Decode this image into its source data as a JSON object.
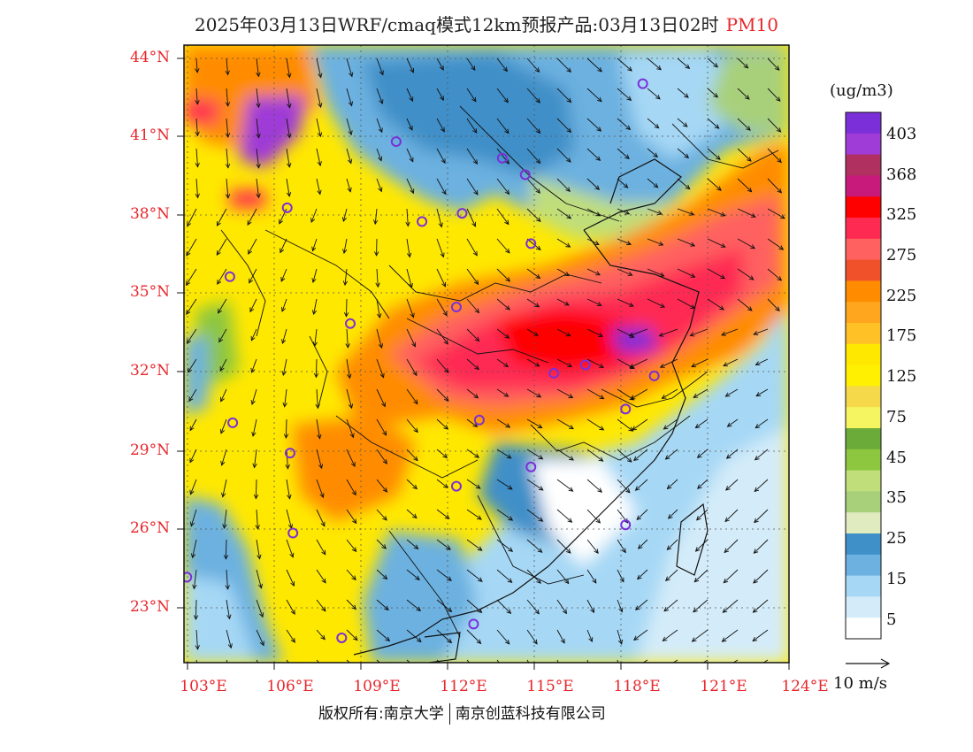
{
  "header": {
    "title": "2025年03月13日WRF/cmaq模式12km预报产品:03月13日02时",
    "pollutant": "PM10"
  },
  "axes": {
    "lat_labels": [
      "44°N",
      "41°N",
      "38°N",
      "35°N",
      "32°N",
      "29°N",
      "26°N",
      "23°N"
    ],
    "lat_values": [
      44,
      41,
      38,
      35,
      32,
      29,
      26,
      23
    ],
    "lon_labels": [
      "103°E",
      "106°E",
      "109°E",
      "112°E",
      "115°E",
      "118°E",
      "121°E",
      "124°E"
    ],
    "lon_values": [
      103,
      106,
      109,
      112,
      115,
      118,
      121,
      124
    ],
    "lon_range": [
      102.9,
      124
    ],
    "lat_range": [
      21.9,
      44.3
    ]
  },
  "colorbar": {
    "unit": "(ug/m3)",
    "labels": [
      "403",
      "368",
      "325",
      "275",
      "225",
      "175",
      "125",
      "75",
      "45",
      "35",
      "25",
      "15",
      "5"
    ],
    "colors": [
      "#7b2fd9",
      "#9f3bd6",
      "#b03060",
      "#c71a7a",
      "#ff0000",
      "#ff2a52",
      "#ff6060",
      "#f0502a",
      "#ff8c00",
      "#ffa51e",
      "#ffc126",
      "#ffe800",
      "#ffef00",
      "#f5d94a",
      "#f5f562",
      "#6bab3a",
      "#8dc63f",
      "#c0de7a",
      "#a8d07a",
      "#e0ebbf",
      "#3f8fc8",
      "#6cb1e0",
      "#a6d8f5",
      "#d4ecf9",
      "#ffffff"
    ]
  },
  "legend": {
    "vector_label": "10 m/s"
  },
  "footer": {
    "left": "版权所有:南京大学",
    "right": "南京创蓝科技有限公司"
  },
  "stations": [
    {
      "lon": 118.9,
      "lat": 42.9
    },
    {
      "lon": 110.3,
      "lat": 40.8
    },
    {
      "lon": 114.0,
      "lat": 40.2
    },
    {
      "lon": 114.8,
      "lat": 39.6
    },
    {
      "lon": 106.5,
      "lat": 38.4
    },
    {
      "lon": 111.2,
      "lat": 37.9
    },
    {
      "lon": 112.6,
      "lat": 38.2
    },
    {
      "lon": 115.0,
      "lat": 37.1
    },
    {
      "lon": 104.5,
      "lat": 35.9
    },
    {
      "lon": 112.4,
      "lat": 34.8
    },
    {
      "lon": 108.7,
      "lat": 34.2
    },
    {
      "lon": 116.9,
      "lat": 32.7
    },
    {
      "lon": 115.8,
      "lat": 32.4
    },
    {
      "lon": 119.3,
      "lat": 32.3
    },
    {
      "lon": 118.3,
      "lat": 31.1
    },
    {
      "lon": 113.2,
      "lat": 30.7
    },
    {
      "lon": 104.6,
      "lat": 30.6
    },
    {
      "lon": 106.6,
      "lat": 29.5
    },
    {
      "lon": 115.0,
      "lat": 29.0
    },
    {
      "lon": 112.4,
      "lat": 28.3
    },
    {
      "lon": 106.7,
      "lat": 26.6
    },
    {
      "lon": 118.3,
      "lat": 26.9
    },
    {
      "lon": 103.0,
      "lat": 25.0
    },
    {
      "lon": 108.4,
      "lat": 22.8
    },
    {
      "lon": 113.0,
      "lat": 23.3
    }
  ]
}
